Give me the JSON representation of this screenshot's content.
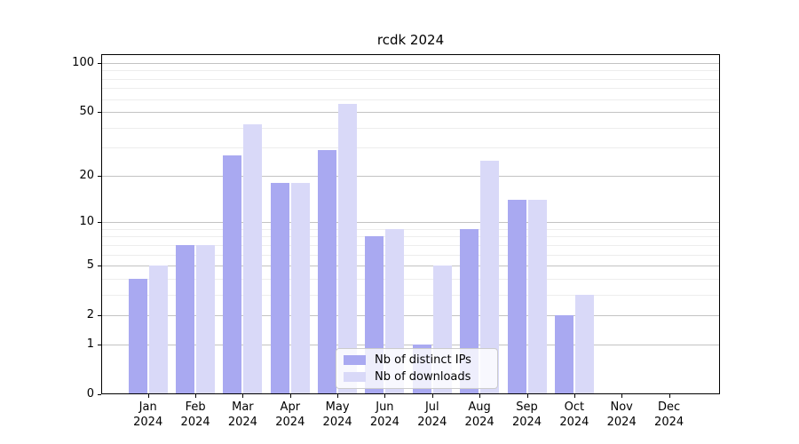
{
  "title": "rcdk 2024",
  "chart_data": {
    "type": "bar",
    "title": "rcdk 2024",
    "categories": [
      "Jan 2024",
      "Feb 2024",
      "Mar 2024",
      "Apr 2024",
      "May 2024",
      "Jun 2024",
      "Jul 2024",
      "Aug 2024",
      "Sep 2024",
      "Oct 2024",
      "Nov 2024",
      "Dec 2024"
    ],
    "series": [
      {
        "name": "Nb of distinct IPs",
        "color": "#a9a9f1",
        "values": [
          4,
          7,
          27,
          18,
          29,
          8,
          1,
          9,
          14,
          2,
          0,
          0
        ]
      },
      {
        "name": "Nb of downloads",
        "color": "#d9d9f8",
        "values": [
          5,
          7,
          42,
          18,
          56,
          9,
          5,
          25,
          14,
          3,
          0,
          0
        ]
      }
    ],
    "xlabel": "",
    "ylabel": "",
    "y_scale": "log1p",
    "y_ticks": [
      0,
      1,
      2,
      5,
      10,
      20,
      50,
      100
    ],
    "y_minor_ticks": [
      3,
      4,
      6,
      7,
      8,
      9,
      30,
      40,
      60,
      70,
      80,
      90
    ],
    "ylim": [
      0,
      113
    ],
    "grid": "on",
    "legend_position": "lower center",
    "colors": {
      "major_grid": "#c3c3c3",
      "minor_grid": "#ededed",
      "axis": "#000000",
      "background": "#ffffff"
    }
  }
}
